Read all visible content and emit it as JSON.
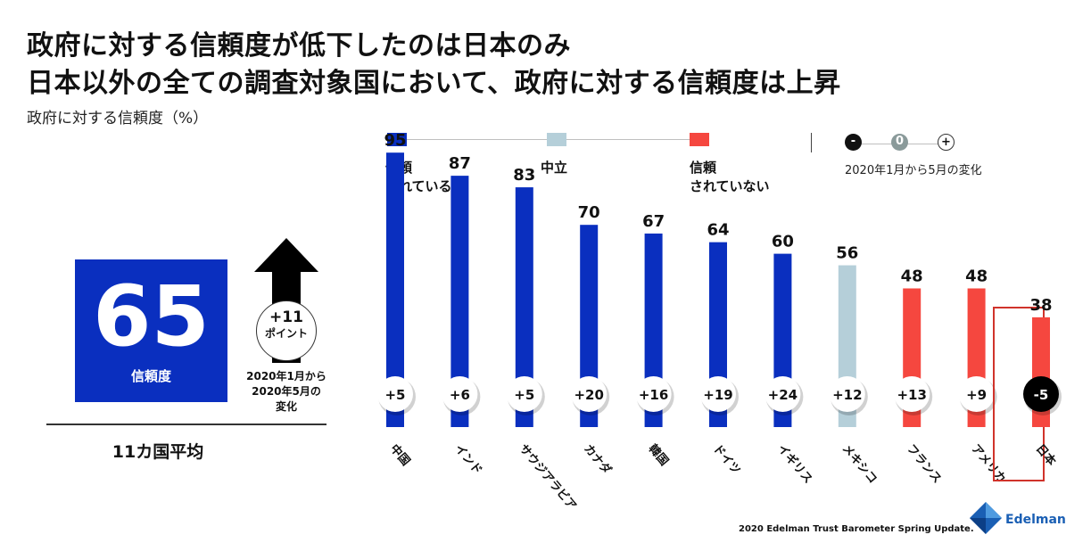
{
  "header": {
    "title_line1": "政府に対する信頼度が低下したのは日本のみ",
    "title_line2": "日本以外の全ての調査対象国において、政府に対する信頼度は上昇",
    "subtitle": "政府に対する信頼度（%）"
  },
  "legend": {
    "trusted": "信頼\nされている",
    "neutral": "中立",
    "distrusted": "信頼\nされていない",
    "mini_minus": "-",
    "mini_zero": "0",
    "mini_plus": "+",
    "change_label": "2020年1月から5月の変化"
  },
  "average": {
    "value": "65",
    "label": "信頼度",
    "change_value": "+11",
    "change_unit": "ポイント",
    "change_period": "2020年1月から\n2020年5月の\n変化",
    "caption": "11カ国平均"
  },
  "colors": {
    "trusted": "#0a2fbf",
    "neutral": "#b5cfd9",
    "distrusted": "#f5473f",
    "highlight_border": "#d0332b"
  },
  "icons": {
    "arrow": "up-arrow-icon",
    "logo": "edelman-logo-icon"
  },
  "chart_data": {
    "type": "bar",
    "categories": [
      "中国",
      "インド",
      "サウジアラビア",
      "カナダ",
      "韓国",
      "ドイツ",
      "イギリス",
      "メキシコ",
      "フランス",
      "アメリカ",
      "日本"
    ],
    "values": [
      95,
      87,
      83,
      70,
      67,
      64,
      60,
      56,
      48,
      48,
      38
    ],
    "changes": [
      "+5",
      "+6",
      "+5",
      "+20",
      "+16",
      "+19",
      "+24",
      "+12",
      "+13",
      "+9",
      "-5"
    ],
    "status": [
      "trusted",
      "trusted",
      "trusted",
      "trusted",
      "trusted",
      "trusted",
      "trusted",
      "neutral",
      "distrusted",
      "distrusted",
      "distrusted"
    ],
    "highlight": "日本",
    "ylim": [
      0,
      100
    ]
  },
  "footer": {
    "source": "2020 Edelman Trust Barometer Spring Update.",
    "logo_text": "Edelman"
  }
}
